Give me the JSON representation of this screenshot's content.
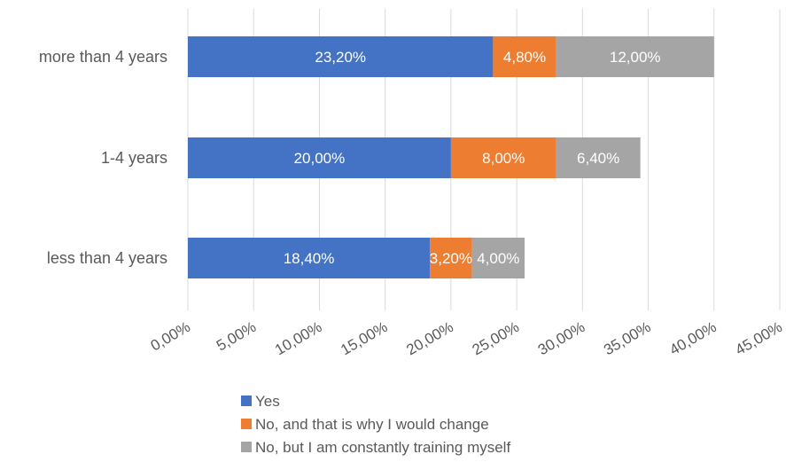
{
  "chart_data": {
    "type": "bar",
    "orientation": "horizontal",
    "stacked": true,
    "categories": [
      "more than 4 years",
      "1-4 years",
      "less than 4 years"
    ],
    "series": [
      {
        "name": "Yes",
        "color": "#4472c4",
        "values": [
          23.2,
          20.0,
          18.4
        ],
        "labels": [
          "23,20%",
          "20,00%",
          "18,40%"
        ]
      },
      {
        "name": "No, and that is why I would change",
        "color": "#ed7d31",
        "values": [
          4.8,
          8.0,
          3.2
        ],
        "labels": [
          "4,80%",
          "8,00%",
          "3,20%"
        ]
      },
      {
        "name": "No, but I am constantly training myself",
        "color": "#a5a5a5",
        "values": [
          12.0,
          6.4,
          4.0
        ],
        "labels": [
          "12,00%",
          "6,40%",
          "4,00%"
        ]
      }
    ],
    "xlim": [
      0,
      45
    ],
    "xticks": [
      0,
      5,
      10,
      15,
      20,
      25,
      30,
      35,
      40,
      45
    ],
    "xtick_labels": [
      "0,00%",
      "5,00%",
      "10,00%",
      "15,00%",
      "20,00%",
      "25,00%",
      "30,00%",
      "35,00%",
      "40,00%",
      "45,00%"
    ],
    "grid": true,
    "legend_position": "bottom"
  }
}
